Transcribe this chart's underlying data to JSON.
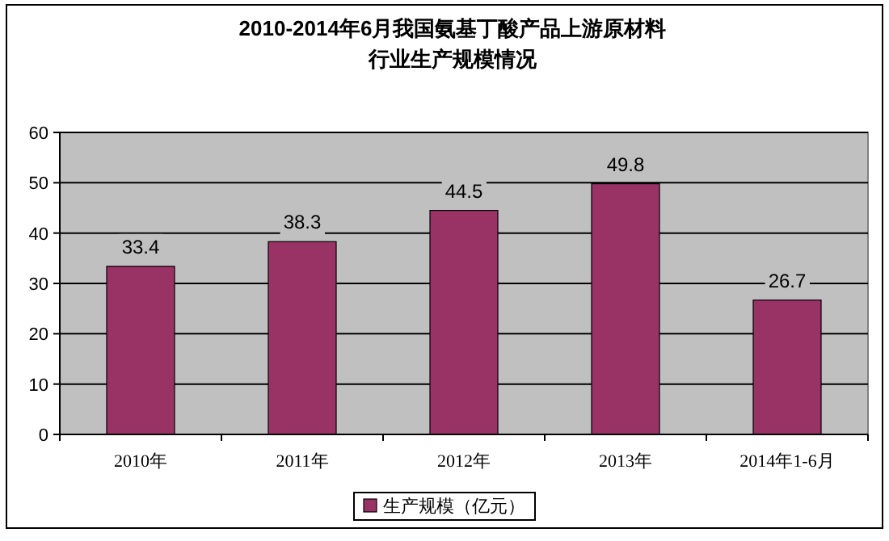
{
  "chart_data": {
    "type": "bar",
    "title": "2010-2014年6月我国氨基丁酸产品上游原材料行业生产规模情况",
    "categories": [
      "2010年",
      "2011年",
      "2012年",
      "2013年",
      "2014年1-6月"
    ],
    "series": [
      {
        "name": "生产规模（亿元）",
        "color": "#993366",
        "values": [
          33.4,
          38.3,
          44.5,
          49.8,
          26.7
        ]
      }
    ],
    "ylim": [
      0,
      60
    ],
    "yticks": [
      0,
      10,
      20,
      30,
      40,
      50,
      60
    ],
    "grid": "y",
    "legend": "bottom",
    "data_labels": true
  }
}
